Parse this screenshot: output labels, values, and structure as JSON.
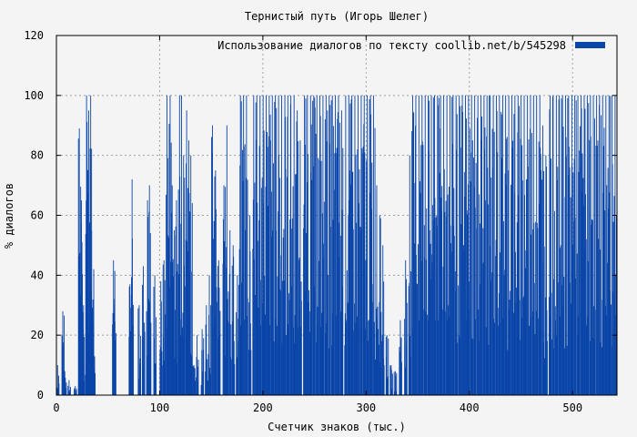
{
  "chart_data": {
    "type": "bar",
    "title": "Тернистый путь (Игорь Шелег)",
    "xlabel": "Счетчик знаков (тыс.)",
    "ylabel": "% диалогов",
    "xlim": [
      0,
      543
    ],
    "ylim": [
      0,
      120
    ],
    "xticks": [
      0,
      100,
      200,
      300,
      400,
      500
    ],
    "yticks": [
      0,
      20,
      40,
      60,
      80,
      100,
      120
    ],
    "grid": true,
    "legend_position": "top-right",
    "series": [
      {
        "name": "Использование диалогов по тексту  coollib.net/b/545298",
        "color": "#0a45a8",
        "peaks": [
          [
            1,
            10
          ],
          [
            6,
            28
          ],
          [
            8,
            8
          ],
          [
            12,
            5
          ],
          [
            18,
            3
          ],
          [
            22,
            89
          ],
          [
            24,
            65
          ],
          [
            26,
            30
          ],
          [
            29,
            100
          ],
          [
            31,
            95
          ],
          [
            33,
            100
          ],
          [
            34,
            55
          ],
          [
            36,
            42
          ],
          [
            55,
            45
          ],
          [
            56,
            30
          ],
          [
            71,
            37
          ],
          [
            73,
            72
          ],
          [
            80,
            30
          ],
          [
            84,
            43
          ],
          [
            88,
            65
          ],
          [
            90,
            70
          ],
          [
            95,
            40
          ],
          [
            101,
            38
          ],
          [
            104,
            45
          ],
          [
            107,
            100
          ],
          [
            110,
            100
          ],
          [
            112,
            70
          ],
          [
            114,
            55
          ],
          [
            116,
            65
          ],
          [
            119,
            100
          ],
          [
            121,
            100
          ],
          [
            123,
            80
          ],
          [
            126,
            95
          ],
          [
            128,
            85
          ],
          [
            130,
            80
          ],
          [
            133,
            10
          ],
          [
            136,
            20
          ],
          [
            141,
            22
          ],
          [
            145,
            30
          ],
          [
            148,
            40
          ],
          [
            151,
            90
          ],
          [
            154,
            75
          ],
          [
            157,
            45
          ],
          [
            162,
            70
          ],
          [
            165,
            90
          ],
          [
            168,
            55
          ],
          [
            171,
            50
          ],
          [
            175,
            40
          ],
          [
            178,
            100
          ],
          [
            181,
            100
          ],
          [
            184,
            100
          ],
          [
            187,
            60
          ],
          [
            191,
            100
          ],
          [
            194,
            100
          ],
          [
            197,
            100
          ],
          [
            200,
            100
          ],
          [
            203,
            100
          ],
          [
            206,
            100
          ],
          [
            209,
            100
          ],
          [
            212,
            100
          ],
          [
            215,
            100
          ],
          [
            218,
            100
          ],
          [
            221,
            100
          ],
          [
            224,
            100
          ],
          [
            227,
            100
          ],
          [
            230,
            100
          ],
          [
            233,
            95
          ],
          [
            236,
            85
          ],
          [
            240,
            100
          ],
          [
            243,
            100
          ],
          [
            246,
            100
          ],
          [
            249,
            100
          ],
          [
            252,
            100
          ],
          [
            255,
            100
          ],
          [
            258,
            100
          ],
          [
            261,
            100
          ],
          [
            264,
            100
          ],
          [
            267,
            100
          ],
          [
            270,
            100
          ],
          [
            273,
            100
          ],
          [
            276,
            95
          ],
          [
            280,
            100
          ],
          [
            283,
            100
          ],
          [
            286,
            100
          ],
          [
            289,
            100
          ],
          [
            292,
            100
          ],
          [
            295,
            100
          ],
          [
            298,
            100
          ],
          [
            301,
            100
          ],
          [
            304,
            100
          ],
          [
            307,
            100
          ],
          [
            310,
            70
          ],
          [
            313,
            60
          ],
          [
            316,
            50
          ],
          [
            320,
            20
          ],
          [
            324,
            10
          ],
          [
            328,
            8
          ],
          [
            333,
            25
          ],
          [
            338,
            45
          ],
          [
            342,
            80
          ],
          [
            345,
            100
          ],
          [
            348,
            100
          ],
          [
            351,
            100
          ],
          [
            354,
            100
          ],
          [
            357,
            100
          ],
          [
            360,
            100
          ],
          [
            363,
            100
          ],
          [
            366,
            100
          ],
          [
            369,
            100
          ],
          [
            372,
            100
          ],
          [
            375,
            100
          ],
          [
            378,
            100
          ],
          [
            381,
            100
          ],
          [
            384,
            100
          ],
          [
            387,
            100
          ],
          [
            390,
            100
          ],
          [
            393,
            100
          ],
          [
            396,
            100
          ],
          [
            399,
            100
          ],
          [
            402,
            100
          ],
          [
            405,
            100
          ],
          [
            408,
            100
          ],
          [
            411,
            100
          ],
          [
            414,
            100
          ],
          [
            417,
            100
          ],
          [
            420,
            100
          ],
          [
            423,
            100
          ],
          [
            426,
            100
          ],
          [
            429,
            100
          ],
          [
            432,
            100
          ],
          [
            435,
            100
          ],
          [
            438,
            100
          ],
          [
            441,
            100
          ],
          [
            444,
            100
          ],
          [
            447,
            100
          ],
          [
            450,
            100
          ],
          [
            453,
            100
          ],
          [
            456,
            100
          ],
          [
            459,
            100
          ],
          [
            462,
            100
          ],
          [
            465,
            100
          ],
          [
            468,
            100
          ],
          [
            471,
            90
          ],
          [
            474,
            80
          ],
          [
            478,
            100
          ],
          [
            481,
            100
          ],
          [
            484,
            100
          ],
          [
            487,
            100
          ],
          [
            490,
            100
          ],
          [
            493,
            100
          ],
          [
            496,
            100
          ],
          [
            499,
            100
          ],
          [
            502,
            100
          ],
          [
            505,
            100
          ],
          [
            508,
            100
          ],
          [
            511,
            100
          ],
          [
            514,
            100
          ],
          [
            517,
            100
          ],
          [
            520,
            100
          ],
          [
            523,
            100
          ],
          [
            526,
            100
          ],
          [
            529,
            100
          ],
          [
            532,
            100
          ],
          [
            535,
            100
          ],
          [
            538,
            100
          ],
          [
            541,
            100
          ]
        ]
      }
    ]
  }
}
